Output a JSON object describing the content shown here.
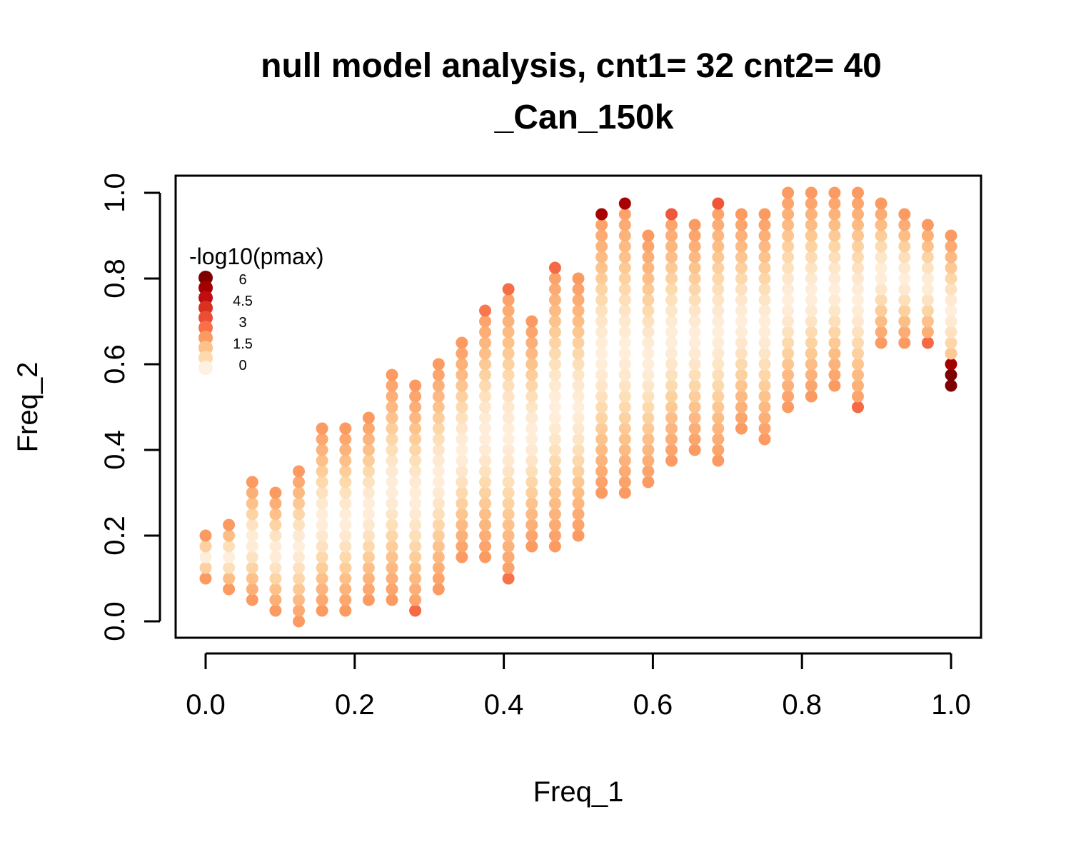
{
  "chart_data": {
    "type": "scatter",
    "title": "null model analysis, cnt1= 32 cnt2= 40",
    "subtitle": "_Can_150k",
    "xlabel": "Freq_1",
    "ylabel": "Freq_2",
    "xlim": [
      0,
      1
    ],
    "ylim": [
      0,
      1
    ],
    "x_ticks": [
      "0.0",
      "0.2",
      "0.4",
      "0.6",
      "0.8",
      "1.0"
    ],
    "y_ticks": [
      "0.0",
      "0.2",
      "0.4",
      "0.6",
      "0.8",
      "1.0"
    ],
    "grid": false,
    "legend": {
      "title": "-log10(pmax)",
      "placement": "top-left",
      "labels": [
        "6",
        "4.5",
        "3",
        "1.5",
        "0"
      ],
      "scale": [
        {
          "value": 6.0,
          "color": "#7f0000"
        },
        {
          "value": 5.25,
          "color": "#a50000"
        },
        {
          "value": 4.5,
          "color": "#c00d10"
        },
        {
          "value": 3.75,
          "color": "#d9301f"
        },
        {
          "value": 3.0,
          "color": "#ee4c35"
        },
        {
          "value": 2.25,
          "color": "#f77049"
        },
        {
          "value": 1.5,
          "color": "#fb9a61"
        },
        {
          "value": 0.75,
          "color": "#fdc189"
        },
        {
          "value": 0.4,
          "color": "#fdd9ab"
        },
        {
          "value": 0.0,
          "color": "#fff1e2"
        }
      ]
    },
    "columns": [
      {
        "x": 0.0,
        "ymin": 0.1,
        "ymax": 0.2
      },
      {
        "x": 0.03125,
        "ymin": 0.075,
        "ymax": 0.225
      },
      {
        "x": 0.0625,
        "ymin": 0.05,
        "ymax": 0.325
      },
      {
        "x": 0.09375,
        "ymin": 0.025,
        "ymax": 0.3
      },
      {
        "x": 0.125,
        "ymin": 0.0,
        "ymax": 0.35
      },
      {
        "x": 0.15625,
        "ymin": 0.025,
        "ymax": 0.45
      },
      {
        "x": 0.1875,
        "ymin": 0.025,
        "ymax": 0.45
      },
      {
        "x": 0.21875,
        "ymin": 0.05,
        "ymax": 0.475
      },
      {
        "x": 0.25,
        "ymin": 0.05,
        "ymax": 0.575
      },
      {
        "x": 0.28125,
        "ymin": 0.025,
        "ymax": 0.55
      },
      {
        "x": 0.3125,
        "ymin": 0.075,
        "ymax": 0.6
      },
      {
        "x": 0.34375,
        "ymin": 0.15,
        "ymax": 0.65
      },
      {
        "x": 0.375,
        "ymin": 0.15,
        "ymax": 0.725
      },
      {
        "x": 0.40625,
        "ymin": 0.1,
        "ymax": 0.775
      },
      {
        "x": 0.4375,
        "ymin": 0.175,
        "ymax": 0.7
      },
      {
        "x": 0.46875,
        "ymin": 0.175,
        "ymax": 0.825
      },
      {
        "x": 0.5,
        "ymin": 0.2,
        "ymax": 0.8
      },
      {
        "x": 0.53125,
        "ymin": 0.3,
        "ymax": 0.95
      },
      {
        "x": 0.5625,
        "ymin": 0.3,
        "ymax": 0.975
      },
      {
        "x": 0.59375,
        "ymin": 0.325,
        "ymax": 0.9
      },
      {
        "x": 0.625,
        "ymin": 0.375,
        "ymax": 0.95
      },
      {
        "x": 0.65625,
        "ymin": 0.4,
        "ymax": 0.925
      },
      {
        "x": 0.6875,
        "ymin": 0.375,
        "ymax": 0.975
      },
      {
        "x": 0.71875,
        "ymin": 0.45,
        "ymax": 0.95
      },
      {
        "x": 0.75,
        "ymin": 0.425,
        "ymax": 0.95
      },
      {
        "x": 0.78125,
        "ymin": 0.5,
        "ymax": 1.0
      },
      {
        "x": 0.8125,
        "ymin": 0.525,
        "ymax": 1.0
      },
      {
        "x": 0.84375,
        "ymin": 0.55,
        "ymax": 1.0
      },
      {
        "x": 0.875,
        "ymin": 0.5,
        "ymax": 1.0
      },
      {
        "x": 0.90625,
        "ymin": 0.65,
        "ymax": 0.975
      },
      {
        "x": 0.9375,
        "ymin": 0.65,
        "ymax": 0.95
      },
      {
        "x": 0.96875,
        "ymin": 0.65,
        "ymax": 0.925
      },
      {
        "x": 1.0,
        "ymin": 0.55,
        "ymax": 0.9
      }
    ],
    "step": 0.025,
    "highlighted_points": [
      {
        "x": 0.53125,
        "y": 0.95,
        "value": 5.2
      },
      {
        "x": 0.5625,
        "y": 0.975,
        "value": 5.2
      },
      {
        "x": 1.0,
        "y": 0.6,
        "value": 5.3
      },
      {
        "x": 1.0,
        "y": 0.575,
        "value": 6.0
      },
      {
        "x": 1.0,
        "y": 0.55,
        "value": 6.0
      },
      {
        "x": 0.875,
        "y": 0.5,
        "value": 2.4
      },
      {
        "x": 0.96875,
        "y": 0.65,
        "value": 2.4
      },
      {
        "x": 0.28125,
        "y": 0.025,
        "value": 2.4
      },
      {
        "x": 0.40625,
        "y": 0.1,
        "value": 2.2
      },
      {
        "x": 0.6875,
        "y": 0.975,
        "value": 2.8
      },
      {
        "x": 0.625,
        "y": 0.95,
        "value": 2.8
      },
      {
        "x": 0.46875,
        "y": 0.825,
        "value": 2.4
      },
      {
        "x": 0.375,
        "y": 0.725,
        "value": 2.1
      },
      {
        "x": 0.40625,
        "y": 0.775,
        "value": 2.3
      }
    ]
  }
}
